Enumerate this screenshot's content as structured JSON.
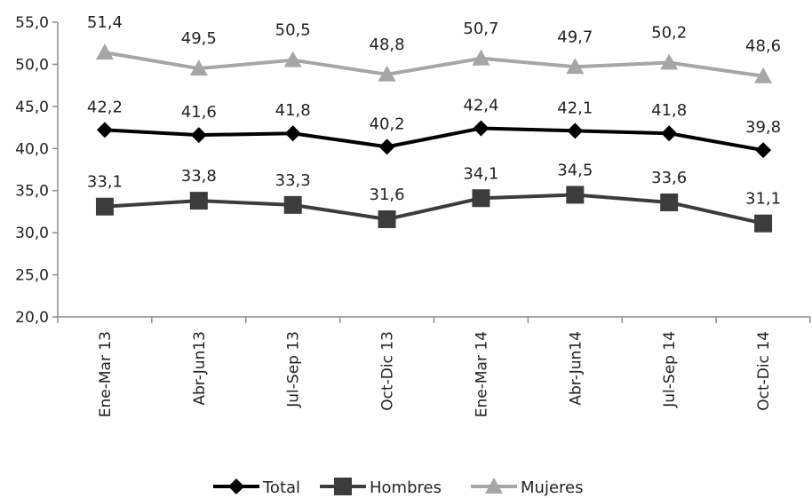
{
  "chart_data": {
    "type": "line",
    "title": "",
    "xlabel": "",
    "ylabel": "",
    "categories": [
      "Ene-Mar 13",
      "Abr-Jun13",
      "Jul-Sep 13",
      "Oct-Dic 13",
      "Ene-Mar 14",
      "Abr-Jun14",
      "Jul-Sep 14",
      "Oct-Dic 14"
    ],
    "ylim": [
      20,
      55
    ],
    "yticks": [
      "20,0",
      "25,0",
      "30,0",
      "35,0",
      "40,0",
      "45,0",
      "50,0",
      "55,0"
    ],
    "grid": false,
    "legend_position": "bottom",
    "series": [
      {
        "name": "Total",
        "values": [
          42.2,
          41.6,
          41.8,
          40.2,
          42.4,
          42.1,
          41.8,
          39.8
        ],
        "labels": [
          "42,2",
          "41,6",
          "41,8",
          "40,2",
          "42,4",
          "42,1",
          "41,8",
          "39,8"
        ],
        "color": "#000000",
        "marker": "diamond"
      },
      {
        "name": "Hombres",
        "values": [
          33.1,
          33.8,
          33.3,
          31.6,
          34.1,
          34.5,
          33.6,
          31.1
        ],
        "labels": [
          "33,1",
          "33,8",
          "33,3",
          "31,6",
          "34,1",
          "34,5",
          "33,6",
          "31,1"
        ],
        "color": "#3c3c3c",
        "marker": "square"
      },
      {
        "name": "Mujeres",
        "values": [
          51.4,
          49.5,
          50.5,
          48.8,
          50.7,
          49.7,
          50.2,
          48.6
        ],
        "labels": [
          "51,4",
          "49,5",
          "50,5",
          "48,8",
          "50,7",
          "49,7",
          "50,2",
          "48,6"
        ],
        "color": "#a6a6a6",
        "marker": "triangle"
      }
    ]
  }
}
